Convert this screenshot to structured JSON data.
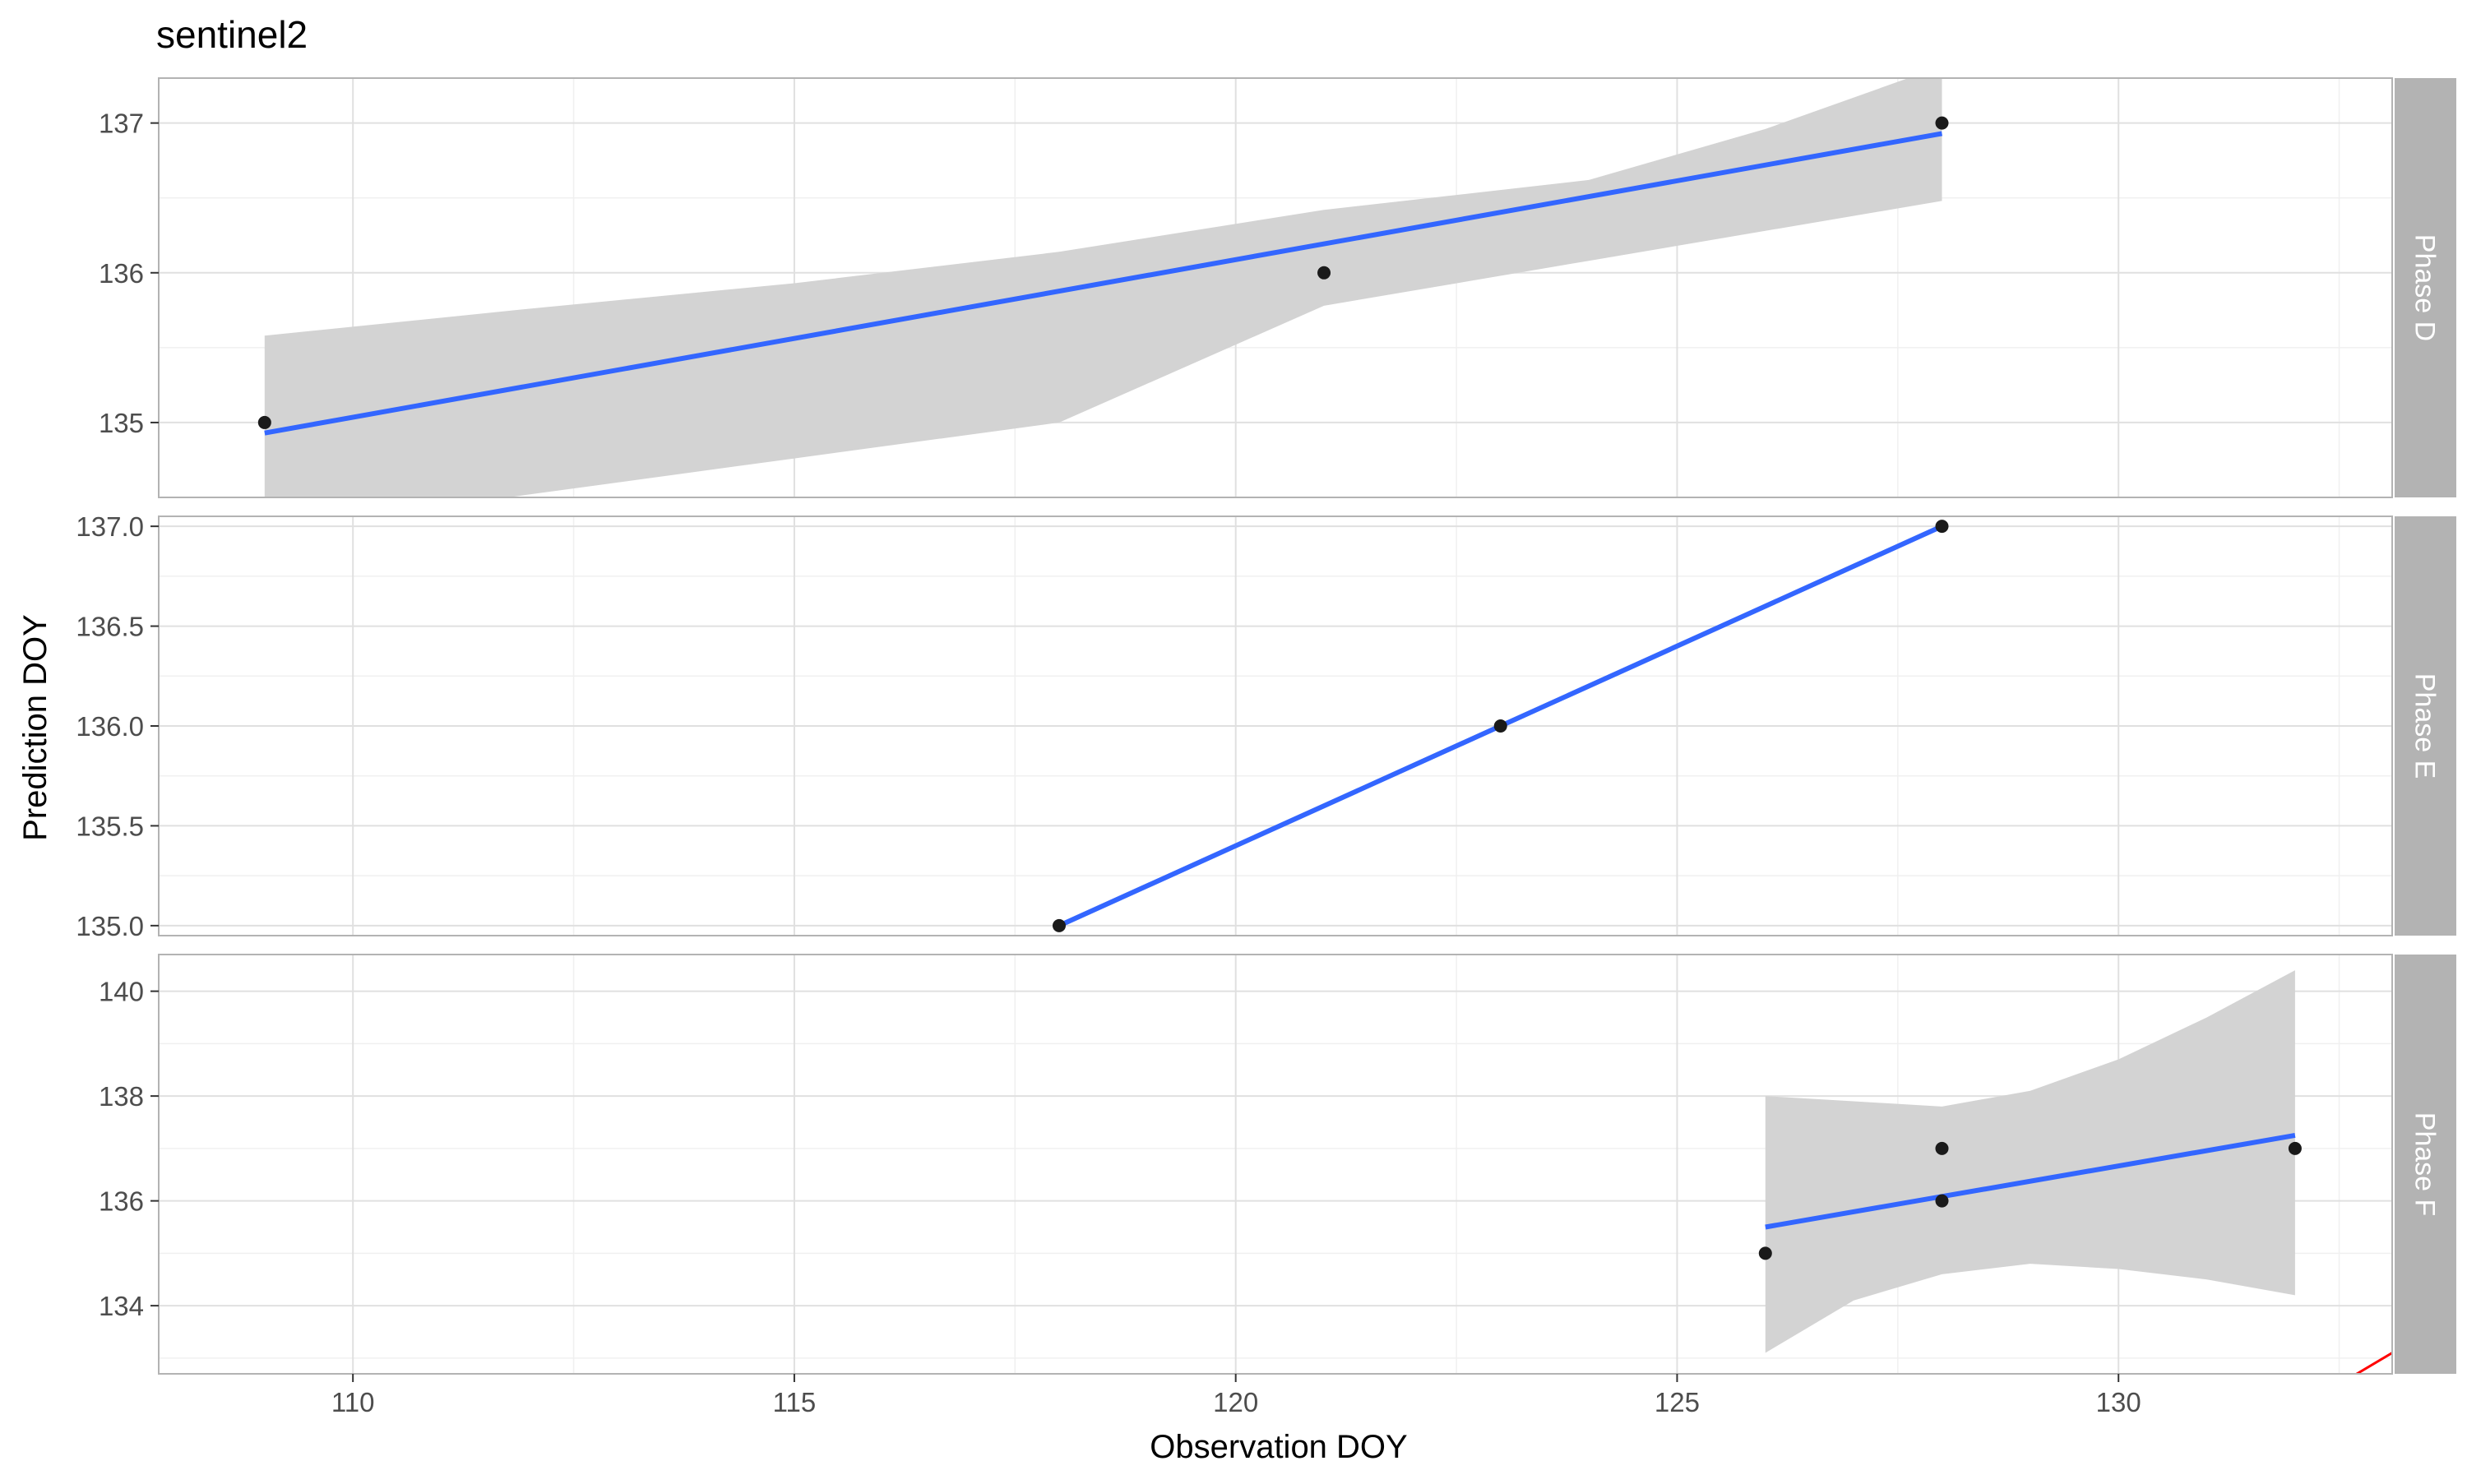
{
  "chart_data": {
    "type": "scatter",
    "title": "sentinel2",
    "xlabel": "Observation DOY",
    "ylabel": "Prediction DOY",
    "x_ticks": [
      110,
      115,
      120,
      125,
      130
    ],
    "xlim": [
      107.8,
      133.1
    ],
    "grid": true,
    "legend": "none",
    "colors": {
      "points": "#1a1a1a",
      "fit_line": "#3366ff",
      "confidence_band": "#d3d3d3",
      "identity_line": "#ff0000",
      "strip": "#b3b3b3",
      "strip_text": "#ffffff",
      "grid": "#e0e0e0",
      "panel_border": "#b3b3b3"
    },
    "panels": [
      {
        "strip_label": "Phase D",
        "ylim": [
          134.5,
          137.3
        ],
        "y_ticks": [
          135,
          136,
          137
        ],
        "y_tick_labels": [
          "135",
          "136",
          "137"
        ],
        "points": [
          [
            109,
            135
          ],
          [
            121,
            136
          ],
          [
            128,
            137
          ]
        ],
        "fit": [
          [
            109,
            134.93
          ],
          [
            128,
            136.93
          ]
        ],
        "band": {
          "x": [
            109,
            112,
            115,
            118,
            121,
            124,
            126,
            128
          ],
          "lower": [
            134.27,
            134.52,
            134.76,
            135.0,
            135.78,
            136.08,
            136.28,
            136.48
          ],
          "upper": [
            135.58,
            135.76,
            135.93,
            136.14,
            136.42,
            136.62,
            136.96,
            137.38
          ]
        }
      },
      {
        "strip_label": "Phase E",
        "ylim": [
          134.95,
          137.05
        ],
        "y_ticks": [
          135.0,
          135.5,
          136.0,
          136.5,
          137.0
        ],
        "y_tick_labels": [
          "135.0",
          "135.5",
          "136.0",
          "136.5",
          "137.0"
        ],
        "points": [
          [
            118,
            135
          ],
          [
            123,
            136
          ],
          [
            128,
            137
          ]
        ],
        "fit": [
          [
            118,
            135.0
          ],
          [
            128,
            137.0
          ]
        ],
        "band": null
      },
      {
        "strip_label": "Phase F",
        "ylim": [
          132.7,
          140.7
        ],
        "y_ticks": [
          134,
          136,
          138,
          140
        ],
        "y_tick_labels": [
          "134",
          "136",
          "138",
          "140"
        ],
        "points": [
          [
            126,
            135
          ],
          [
            128,
            136
          ],
          [
            128,
            137
          ],
          [
            132,
            137
          ]
        ],
        "fit": [
          [
            126,
            135.5
          ],
          [
            132,
            137.25
          ]
        ],
        "band": {
          "x": [
            126,
            127,
            128,
            129,
            130,
            131,
            132
          ],
          "lower": [
            133.1,
            134.1,
            134.6,
            134.8,
            134.7,
            134.5,
            134.2
          ],
          "upper": [
            138.0,
            137.9,
            137.8,
            138.1,
            138.7,
            139.5,
            140.4
          ]
        },
        "identity_line": [
          [
            132.5,
            132.5
          ],
          [
            133.1,
            133.1
          ]
        ]
      }
    ]
  }
}
